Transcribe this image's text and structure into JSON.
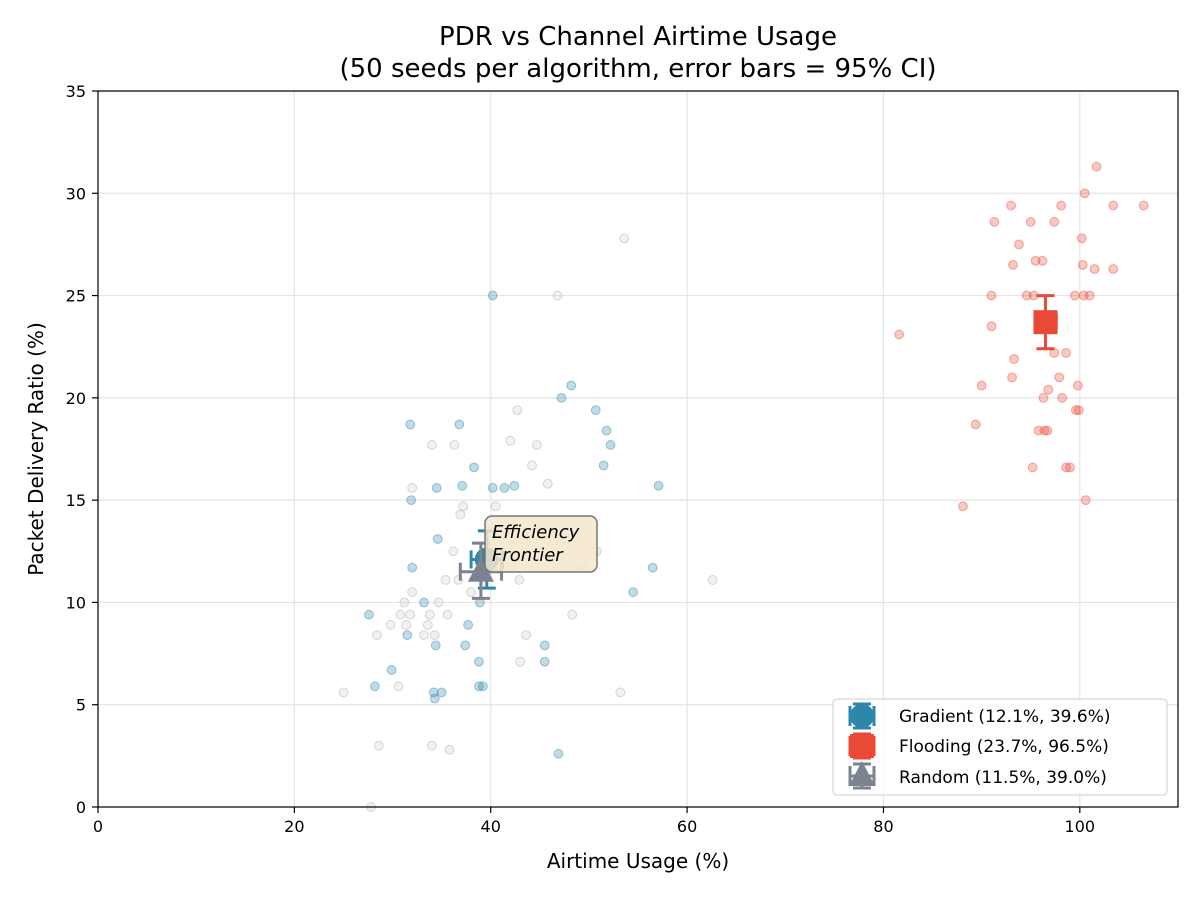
{
  "chart_data": {
    "type": "scatter",
    "title_line1": "PDR vs Channel Airtime Usage",
    "title_line2": "(50 seeds per algorithm, error bars = 95% CI)",
    "xlabel": "Airtime Usage (%)",
    "ylabel": "Packet Delivery Ratio (%)",
    "xlim": [
      0,
      110
    ],
    "ylim": [
      0,
      35
    ],
    "xticks": [
      0,
      20,
      40,
      60,
      80,
      100
    ],
    "yticks": [
      0,
      5,
      10,
      15,
      20,
      25,
      30,
      35
    ],
    "grid": true,
    "legend_position": "lower-right",
    "annotation": {
      "line1": "Efficiency",
      "line2": "Frontier",
      "x": 40.2,
      "y": 12.3
    },
    "series": [
      {
        "name": "Gradient",
        "legend_label": "Gradient (12.1%, 39.6%)",
        "color": "#2e86ab",
        "marker": "circle",
        "mean": {
          "x": 39.6,
          "y": 12.1
        },
        "ci": {
          "x": [
            38.0,
            41.2
          ],
          "y": [
            10.7,
            13.5
          ]
        },
        "points": [
          [
            31.8,
            18.7
          ],
          [
            36.8,
            18.7
          ],
          [
            38.3,
            16.6
          ],
          [
            31.9,
            15.0
          ],
          [
            34.5,
            15.6
          ],
          [
            37.1,
            15.7
          ],
          [
            34.6,
            13.1
          ],
          [
            32.0,
            11.7
          ],
          [
            31.5,
            8.4
          ],
          [
            34.4,
            7.9
          ],
          [
            34.2,
            5.6
          ],
          [
            34.3,
            5.3
          ],
          [
            35.0,
            5.6
          ],
          [
            38.8,
            5.9
          ],
          [
            39.2,
            5.9
          ],
          [
            29.9,
            6.7
          ],
          [
            28.2,
            5.9
          ],
          [
            27.6,
            9.4
          ],
          [
            33.2,
            10.0
          ],
          [
            37.7,
            8.9
          ],
          [
            38.8,
            7.1
          ],
          [
            37.4,
            7.9
          ],
          [
            38.9,
            10.0
          ],
          [
            40.2,
            25.0
          ],
          [
            47.2,
            20.0
          ],
          [
            48.2,
            20.6
          ],
          [
            50.7,
            19.4
          ],
          [
            51.8,
            18.4
          ],
          [
            52.2,
            17.7
          ],
          [
            51.5,
            16.7
          ],
          [
            57.1,
            15.7
          ],
          [
            42.4,
            15.7
          ],
          [
            41.4,
            15.6
          ],
          [
            40.2,
            15.6
          ],
          [
            56.5,
            11.7
          ],
          [
            54.5,
            10.5
          ],
          [
            45.5,
            7.9
          ],
          [
            45.5,
            7.1
          ],
          [
            46.9,
            2.6
          ]
        ]
      },
      {
        "name": "Flooding",
        "legend_label": "Flooding (23.7%, 96.5%)",
        "color": "#e84a35",
        "marker": "square",
        "mean": {
          "x": 96.5,
          "y": 23.7
        },
        "ci": {
          "x": [
            95.5,
            97.6
          ],
          "y": [
            22.4,
            25.0
          ]
        },
        "points": [
          [
            81.6,
            23.1
          ],
          [
            88.1,
            14.7
          ],
          [
            89.4,
            18.7
          ],
          [
            90.0,
            20.6
          ],
          [
            91.0,
            25.0
          ],
          [
            91.0,
            23.5
          ],
          [
            91.3,
            28.6
          ],
          [
            93.0,
            29.4
          ],
          [
            93.2,
            26.5
          ],
          [
            93.3,
            21.9
          ],
          [
            93.1,
            21.0
          ],
          [
            93.8,
            27.5
          ],
          [
            94.6,
            25.0
          ],
          [
            95.3,
            25.0
          ],
          [
            95.0,
            28.6
          ],
          [
            95.5,
            26.7
          ],
          [
            96.2,
            26.7
          ],
          [
            95.2,
            16.6
          ],
          [
            95.8,
            18.4
          ],
          [
            96.3,
            20.0
          ],
          [
            96.4,
            18.4
          ],
          [
            96.7,
            18.4
          ],
          [
            96.8,
            20.4
          ],
          [
            97.4,
            22.2
          ],
          [
            97.4,
            28.6
          ],
          [
            97.9,
            21.0
          ],
          [
            98.1,
            29.4
          ],
          [
            98.2,
            20.0
          ],
          [
            98.6,
            22.2
          ],
          [
            98.6,
            16.6
          ],
          [
            99.0,
            16.6
          ],
          [
            99.5,
            25.0
          ],
          [
            99.6,
            19.4
          ],
          [
            99.8,
            20.6
          ],
          [
            99.9,
            19.4
          ],
          [
            100.2,
            27.8
          ],
          [
            100.3,
            26.5
          ],
          [
            100.4,
            25.0
          ],
          [
            100.5,
            30.0
          ],
          [
            100.6,
            15.0
          ],
          [
            101.0,
            25.0
          ],
          [
            101.5,
            26.3
          ],
          [
            101.7,
            31.3
          ],
          [
            103.4,
            26.3
          ],
          [
            103.4,
            29.4
          ],
          [
            106.5,
            29.4
          ]
        ]
      },
      {
        "name": "Random",
        "legend_label": "Random (11.5%, 39.0%)",
        "color": "#7b8290",
        "marker": "triangle",
        "mean": {
          "x": 39.0,
          "y": 11.5
        },
        "ci": {
          "x": [
            36.9,
            41.1
          ],
          "y": [
            10.2,
            12.9
          ]
        },
        "points": [
          [
            25.0,
            5.6
          ],
          [
            27.8,
            0.0
          ],
          [
            28.6,
            3.0
          ],
          [
            28.4,
            8.4
          ],
          [
            30.8,
            9.4
          ],
          [
            30.6,
            5.9
          ],
          [
            29.8,
            8.9
          ],
          [
            31.2,
            10.0
          ],
          [
            31.4,
            8.9
          ],
          [
            31.8,
            9.4
          ],
          [
            32.0,
            10.5
          ],
          [
            32.0,
            15.6
          ],
          [
            33.2,
            8.4
          ],
          [
            33.6,
            8.9
          ],
          [
            33.8,
            9.4
          ],
          [
            34.0,
            17.7
          ],
          [
            34.0,
            3.0
          ],
          [
            34.3,
            8.4
          ],
          [
            34.7,
            10.0
          ],
          [
            35.4,
            11.1
          ],
          [
            35.6,
            9.4
          ],
          [
            35.8,
            2.8
          ],
          [
            36.2,
            12.5
          ],
          [
            36.3,
            17.7
          ],
          [
            36.7,
            11.1
          ],
          [
            36.9,
            14.3
          ],
          [
            37.2,
            14.7
          ],
          [
            38.0,
            10.5
          ],
          [
            40.5,
            14.7
          ],
          [
            42.0,
            17.9
          ],
          [
            42.7,
            19.4
          ],
          [
            42.9,
            11.1
          ],
          [
            43.0,
            7.1
          ],
          [
            43.6,
            8.4
          ],
          [
            44.2,
            16.7
          ],
          [
            44.7,
            17.7
          ],
          [
            45.8,
            15.8
          ],
          [
            46.8,
            25.0
          ],
          [
            48.3,
            9.4
          ],
          [
            49.3,
            11.7
          ],
          [
            50.8,
            12.5
          ],
          [
            53.2,
            5.6
          ],
          [
            53.6,
            27.8
          ],
          [
            62.6,
            11.1
          ]
        ]
      }
    ]
  }
}
